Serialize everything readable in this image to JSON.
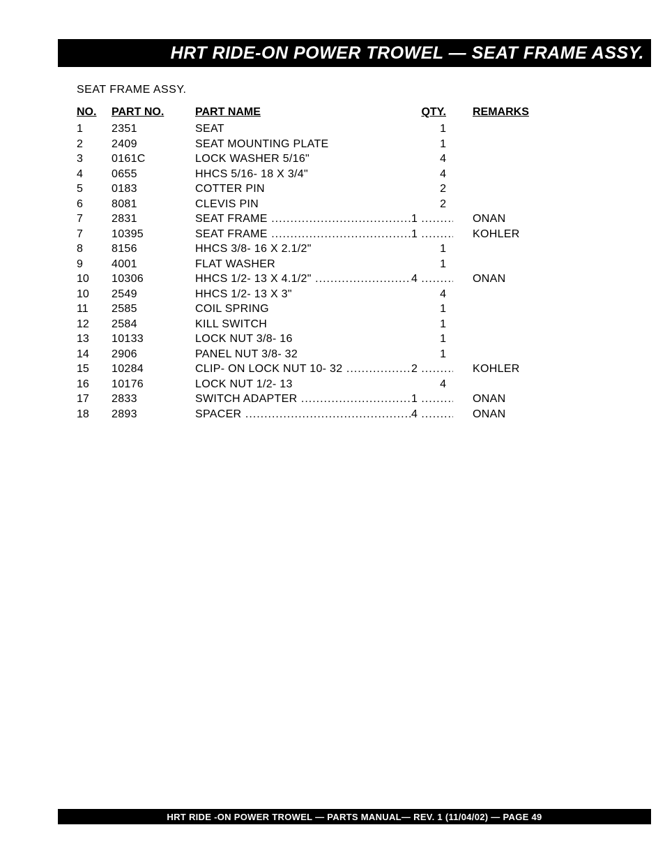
{
  "header": {
    "title": "HRT RIDE-ON POWER TROWEL  — SEAT FRAME  ASSY."
  },
  "subtitle": "SEAT  FRAME ASSY.",
  "table": {
    "columns": {
      "no": "NO.",
      "partno": "PART NO.",
      "partname": "PART NAME",
      "qty": "QTY.",
      "remarks": "REMARKS"
    },
    "rows": [
      {
        "no": "1",
        "partno": "2351",
        "partname": "SEAT",
        "qty": "1",
        "remarks": "",
        "leader": false
      },
      {
        "no": "2",
        "partno": "2409",
        "partname": "SEAT MOUNTING PLATE",
        "qty": "1",
        "remarks": "",
        "leader": false
      },
      {
        "no": "3",
        "partno": "0161C",
        "partname": "LOCK WASHER 5/16\"",
        "qty": "4",
        "remarks": "",
        "leader": false
      },
      {
        "no": "4",
        "partno": "0655",
        "partname": "HHCS 5/16- 18 X 3/4\"",
        "qty": "4",
        "remarks": "",
        "leader": false
      },
      {
        "no": "5",
        "partno": "0183",
        "partname": "COTTER PIN",
        "qty": "2",
        "remarks": "",
        "leader": false
      },
      {
        "no": "6",
        "partno": "8081",
        "partname": "CLEVIS PIN",
        "qty": "2",
        "remarks": "",
        "leader": false
      },
      {
        "no": "7",
        "partno": "2831",
        "partname": "SEAT FRAME",
        "qty": "1",
        "remarks": "ONAN",
        "leader": true
      },
      {
        "no": "7",
        "partno": "10395",
        "partname": "SEAT FRAME",
        "qty": "1",
        "remarks": "KOHLER",
        "leader": true
      },
      {
        "no": "8",
        "partno": "8156",
        "partname": "HHCS 3/8- 16 X 2.1/2\"",
        "qty": "1",
        "remarks": "",
        "leader": false
      },
      {
        "no": "9",
        "partno": "4001",
        "partname": "FLAT WASHER",
        "qty": "1",
        "remarks": "",
        "leader": false
      },
      {
        "no": "10",
        "partno": "10306",
        "partname": "HHCS 1/2- 13 X 4.1/2\"",
        "qty": "4",
        "remarks": "ONAN",
        "leader": true
      },
      {
        "no": "10",
        "partno": "2549",
        "partname": "HHCS 1/2- 13 X 3\"",
        "qty": "4",
        "remarks": "",
        "leader": false
      },
      {
        "no": "11",
        "partno": "2585",
        "partname": "COIL SPRING",
        "qty": "1",
        "remarks": "",
        "leader": false
      },
      {
        "no": "12",
        "partno": "2584",
        "partname": "KILL SWITCH",
        "qty": "1",
        "remarks": "",
        "leader": false
      },
      {
        "no": "13",
        "partno": "10133",
        "partname": "LOCK NUT 3/8- 16",
        "qty": "1",
        "remarks": "",
        "leader": false
      },
      {
        "no": "14",
        "partno": "2906",
        "partname": "PANEL NUT 3/8- 32",
        "qty": "1",
        "remarks": "",
        "leader": false
      },
      {
        "no": "15",
        "partno": "10284",
        "partname": "CLIP- ON LOCK NUT 10- 32",
        "qty": "2",
        "remarks": "KOHLER",
        "leader": true
      },
      {
        "no": "16",
        "partno": "10176",
        "partname": "LOCK NUT 1/2- 13",
        "qty": "4",
        "remarks": "",
        "leader": false
      },
      {
        "no": "17",
        "partno": "2833",
        "partname": "SWITCH ADAPTER",
        "qty": "1",
        "remarks": "ONAN",
        "leader": true
      },
      {
        "no": "18",
        "partno": "2893",
        "partname": "SPACER",
        "qty": "4",
        "remarks": "ONAN",
        "leader": true
      }
    ]
  },
  "footer": {
    "text": "HRT RIDE -ON POWER TROWEL — PARTS  MANUAL— REV. 1 (11/04/02) — PAGE 49"
  },
  "styling": {
    "page_bg": "#ffffff",
    "bar_bg": "#000000",
    "bar_text_color": "#ffffff",
    "body_text_color": "#000000",
    "header_fontsize": 25,
    "body_fontsize": 16,
    "footer_fontsize": 13,
    "row_lineheight": 21.5
  }
}
